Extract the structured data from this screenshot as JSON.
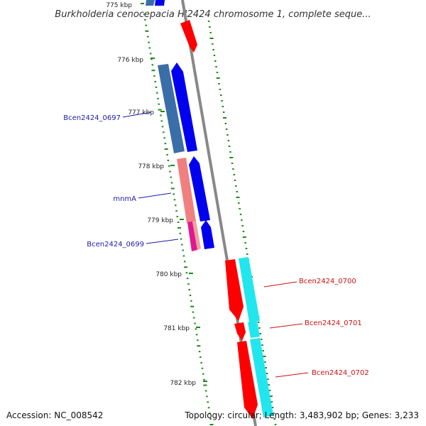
{
  "title": "Burkholderia cenocepacia HI2424 chromosome 1, complete seque...",
  "footer": {
    "accession": "Accession: NC_008542",
    "summary": "Topology: circular; Length: 3,483,902 bp; Genes: 3,233"
  },
  "ticks": [
    {
      "label": "775 kbp"
    },
    {
      "label": "776 kbp"
    },
    {
      "label": "777 kbp"
    },
    {
      "label": "778 kbp"
    },
    {
      "label": "779 kbp"
    },
    {
      "label": "780 kbp"
    },
    {
      "label": "781 kbp"
    },
    {
      "label": "782 kbp"
    }
  ],
  "gene_labels": [
    {
      "text": "Bcen2424_0697",
      "color": "#1a1aa8"
    },
    {
      "text": "mnmA",
      "color": "#1a1aa8"
    },
    {
      "text": "Bcen2424_0699",
      "color": "#1a1aa8"
    },
    {
      "text": "Bcen2424_0700",
      "color": "#cc1111"
    },
    {
      "text": "Bcen2424_0701",
      "color": "#cc1111"
    },
    {
      "text": "Bcen2424_0702",
      "color": "#cc1111"
    }
  ],
  "colors": {
    "forward_cds": "#ff0000",
    "reverse_cds": "#0000ee",
    "forward_gene": "#22e6ee",
    "reverse_gene": "#3a6ea8",
    "trna_gene": "#f08080",
    "misc": "#e01890",
    "backbone": "#888888",
    "gc_ticks": "#1a8a1a"
  }
}
